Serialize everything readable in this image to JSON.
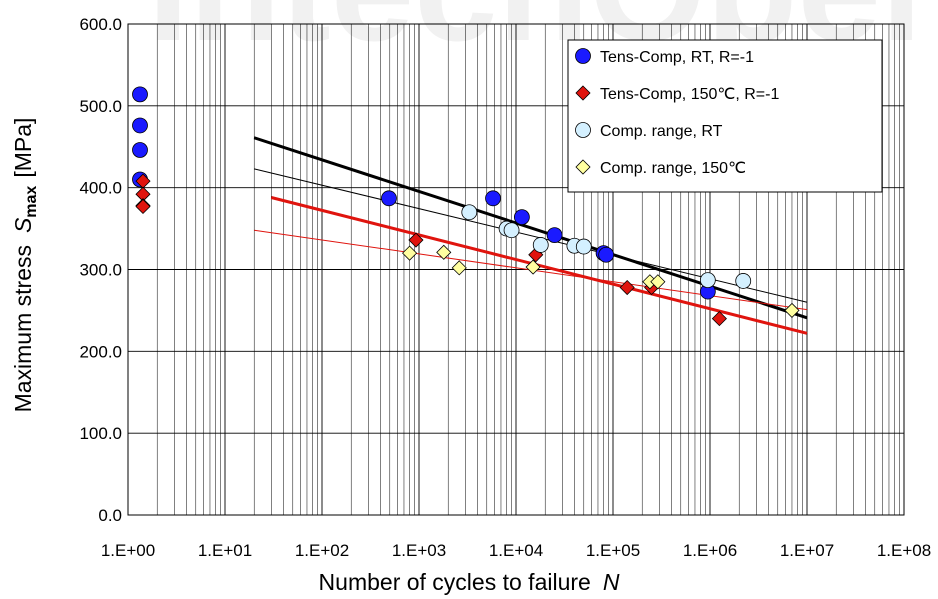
{
  "chart_data": {
    "type": "scatter",
    "title": "",
    "xlabel": {
      "text": "Number of cycles to failure",
      "symbol": "N"
    },
    "ylabel": {
      "text": "Maximum stress",
      "symbol": "S",
      "subscript": "max",
      "unit": "[MPa]"
    },
    "x_scale": "log",
    "xlim": [
      1,
      100000000
    ],
    "ylim": [
      0,
      600
    ],
    "x_ticks": [
      "1.E+00",
      "1.E+01",
      "1.E+02",
      "1.E+03",
      "1.E+04",
      "1.E+05",
      "1.E+06",
      "1.E+07",
      "1.E+08"
    ],
    "y_ticks": [
      "0.0",
      "100.0",
      "200.0",
      "300.0",
      "400.0",
      "500.0",
      "600.0"
    ],
    "grid": true,
    "legend_position": "top-right",
    "series": [
      {
        "name": "Tens-Comp, RT, R=-1",
        "marker": "circle",
        "color": "#1a1aff",
        "points": [
          [
            1.0,
            514
          ],
          [
            1.0,
            476
          ],
          [
            1.0,
            446
          ],
          [
            1.0,
            410
          ],
          [
            490,
            387
          ],
          [
            5800,
            387
          ],
          [
            11500,
            364
          ],
          [
            25000,
            342
          ],
          [
            80000,
            320
          ],
          [
            85000,
            318
          ],
          [
            950000,
            273
          ]
        ]
      },
      {
        "name": "Tens-Comp, 150℃, R=-1",
        "marker": "diamond",
        "color": "#e0140e",
        "points": [
          [
            1.05,
            408
          ],
          [
            1.05,
            392
          ],
          [
            1.05,
            378
          ],
          [
            1.2,
            377
          ],
          [
            930,
            336
          ],
          [
            16000,
            318
          ],
          [
            140000,
            278
          ],
          [
            250000,
            278
          ],
          [
            1250000,
            240
          ]
        ]
      },
      {
        "name": "Comp. range, RT",
        "marker": "circle",
        "color": "#d4f0ff",
        "points": [
          [
            3300,
            370
          ],
          [
            8000,
            350
          ],
          [
            9000,
            348
          ],
          [
            18000,
            330
          ],
          [
            40000,
            329
          ],
          [
            50000,
            328
          ],
          [
            950000,
            287
          ],
          [
            2200000,
            286
          ]
        ]
      },
      {
        "name": "Comp. range, 150℃",
        "marker": "diamond",
        "color": "#ffffa0",
        "points": [
          [
            800,
            320
          ],
          [
            1800,
            321
          ],
          [
            2600,
            302
          ],
          [
            15000,
            303
          ],
          [
            240000,
            285
          ],
          [
            290000,
            285
          ],
          [
            7000000,
            250
          ]
        ]
      }
    ],
    "trend_lines": [
      {
        "color": "#000000",
        "width": 3,
        "from": [
          20,
          461
        ],
        "to": [
          10000000,
          241
        ]
      },
      {
        "color": "#000000",
        "width": 1,
        "from": [
          20,
          423
        ],
        "to": [
          10000000,
          260
        ]
      },
      {
        "color": "#e0140e",
        "width": 3,
        "from": [
          30,
          388
        ],
        "to": [
          10000000,
          222
        ]
      },
      {
        "color": "#e0140e",
        "width": 1,
        "from": [
          20,
          348
        ],
        "to": [
          10000000,
          251
        ]
      }
    ],
    "background_text": "IntechOpen"
  }
}
